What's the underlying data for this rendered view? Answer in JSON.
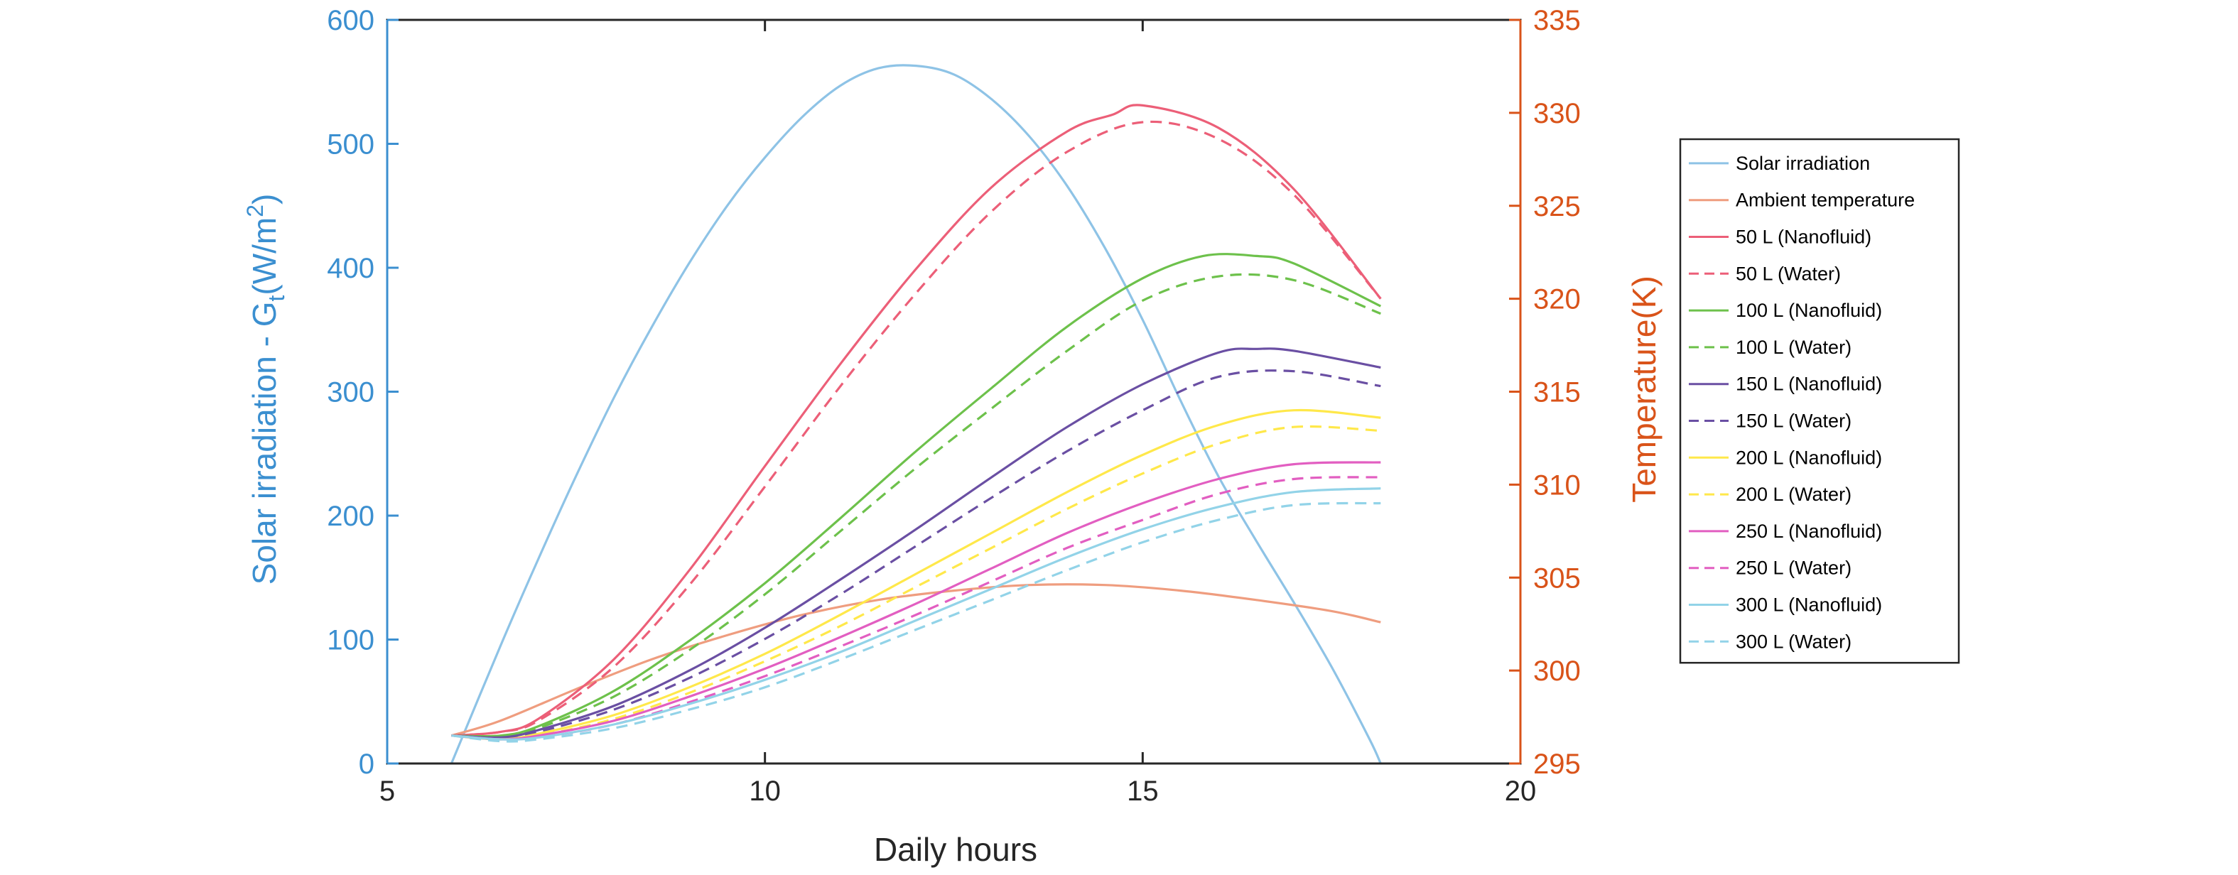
{
  "chart_data": {
    "type": "line",
    "xlabel": "Daily hours",
    "ylabel_left": "Solar irradiation - G",
    "ylabel_left_sub": "t",
    "ylabel_left_unit_open": "(W/m",
    "ylabel_left_unit_sup": "2",
    "ylabel_left_unit_close": ")",
    "ylabel_right": "Temperature(K)",
    "xlim": [
      5,
      20
    ],
    "ylim_left": [
      0,
      600
    ],
    "ylim_right": [
      295,
      335
    ],
    "xticks": [
      "5",
      "10",
      "15",
      "20"
    ],
    "yticks_left": [
      "0",
      "100",
      "200",
      "300",
      "400",
      "500",
      "600"
    ],
    "yticks_right": [
      "295",
      "300",
      "305",
      "310",
      "315",
      "320",
      "325",
      "330",
      "335"
    ],
    "grid": false,
    "legend_placement": "outside-right",
    "colors": {
      "left_axis": "#3b8fd0",
      "right_axis": "#d95319",
      "axis_box": "#262626"
    },
    "series": [
      {
        "name": "Solar irradiation",
        "axis": "left",
        "style": "solid",
        "color": "#8ec3e6",
        "x": [
          5.85,
          6.5,
          7,
          7.5,
          8,
          8.5,
          9,
          9.5,
          10,
          10.5,
          11,
          11.5,
          12,
          12.5,
          13,
          13.5,
          14,
          14.5,
          15,
          15.5,
          16,
          16.5,
          17,
          17.5,
          18,
          18.15
        ],
        "y": [
          0,
          95,
          165,
          232,
          295,
          352,
          404,
          450,
          489,
          522,
          547,
          561,
          563,
          556,
          536,
          506,
          466,
          416,
          358,
          293,
          232,
          180,
          130,
          78,
          20,
          0
        ]
      },
      {
        "name": "Ambient temperature",
        "axis": "right",
        "style": "solid",
        "color": "#ef9d7f",
        "x": [
          5.85,
          6.5,
          7.5,
          8.5,
          9.5,
          10.5,
          11.5,
          12.5,
          13.5,
          14.5,
          15.5,
          16.5,
          17.5,
          18.15
        ],
        "y": [
          296.5,
          297.3,
          299.0,
          300.6,
          301.9,
          303.0,
          303.8,
          304.3,
          304.6,
          304.6,
          304.3,
          303.8,
          303.2,
          302.6
        ]
      },
      {
        "name": "50 L (Nanofluid)",
        "axis": "right",
        "style": "solid",
        "color": "#ec5f78",
        "x": [
          5.85,
          6.5,
          7,
          8,
          9,
          10,
          11,
          12,
          13,
          14,
          14.6,
          15,
          16,
          17,
          18.15
        ],
        "y": [
          296.5,
          296.7,
          297.4,
          300.6,
          305.4,
          311.0,
          316.5,
          321.6,
          326.0,
          329.0,
          329.9,
          330.4,
          329.2,
          325.9,
          320.0
        ]
      },
      {
        "name": "50 L (Water)",
        "axis": "right",
        "style": "dashed",
        "color": "#ec5f78",
        "x": [
          5.85,
          6.5,
          7,
          8,
          9,
          10,
          11,
          12,
          13,
          14,
          15,
          16,
          17,
          18.15
        ],
        "y": [
          296.5,
          296.7,
          297.3,
          300.2,
          304.6,
          309.9,
          315.3,
          320.3,
          324.7,
          327.9,
          329.5,
          328.6,
          325.6,
          320.0
        ]
      },
      {
        "name": "100 L (Nanofluid)",
        "axis": "right",
        "style": "solid",
        "color": "#6dc14b",
        "x": [
          5.85,
          6.5,
          7,
          8,
          9,
          10,
          11,
          12,
          13,
          14,
          15,
          15.8,
          16.5,
          17,
          18.15
        ],
        "y": [
          296.5,
          296.5,
          297.0,
          298.9,
          301.6,
          304.7,
          308.2,
          311.8,
          315.2,
          318.5,
          321.1,
          322.3,
          322.3,
          321.9,
          319.6
        ]
      },
      {
        "name": "100 L (Water)",
        "axis": "right",
        "style": "dashed",
        "color": "#6dc14b",
        "x": [
          5.85,
          6.5,
          7,
          8,
          9,
          10,
          11,
          12,
          13,
          14,
          15,
          16,
          17,
          18.15
        ],
        "y": [
          296.5,
          296.4,
          296.9,
          298.6,
          301.1,
          304.1,
          307.5,
          310.9,
          314.1,
          317.2,
          319.9,
          321.2,
          321.0,
          319.2
        ]
      },
      {
        "name": "150 L (Nanofluid)",
        "axis": "right",
        "style": "solid",
        "color": "#6a4fa3",
        "x": [
          5.85,
          6.5,
          7,
          8,
          9,
          10,
          11,
          12,
          13,
          14,
          15,
          16,
          16.5,
          17,
          18.15
        ],
        "y": [
          296.5,
          296.4,
          296.8,
          298.1,
          300.0,
          302.3,
          304.9,
          307.6,
          310.4,
          313.1,
          315.4,
          317.1,
          317.3,
          317.2,
          316.3
        ]
      },
      {
        "name": "150 L (Water)",
        "axis": "right",
        "style": "dashed",
        "color": "#6a4fa3",
        "x": [
          5.85,
          6.5,
          7,
          8,
          9,
          10,
          11,
          12,
          13,
          14,
          15,
          16,
          17,
          18.15
        ],
        "y": [
          296.5,
          296.4,
          296.7,
          297.9,
          299.6,
          301.7,
          304.1,
          306.7,
          309.3,
          311.8,
          314.0,
          315.8,
          316.1,
          315.3
        ]
      },
      {
        "name": "200 L (Nanofluid)",
        "axis": "right",
        "style": "solid",
        "color": "#ffe84a",
        "x": [
          5.85,
          6.5,
          7,
          8,
          9,
          10,
          11,
          12,
          13,
          14,
          15,
          16,
          17,
          18.15
        ],
        "y": [
          296.5,
          296.3,
          296.6,
          297.6,
          299.1,
          300.9,
          303.0,
          305.2,
          307.4,
          309.6,
          311.6,
          313.2,
          314.0,
          313.6
        ]
      },
      {
        "name": "200 L (Water)",
        "axis": "right",
        "style": "dashed",
        "color": "#ffe84a",
        "x": [
          5.85,
          6.5,
          7,
          8,
          9,
          10,
          11,
          12,
          13,
          14,
          15,
          16,
          17,
          18.15
        ],
        "y": [
          296.5,
          296.3,
          296.5,
          297.4,
          298.8,
          300.5,
          302.4,
          304.5,
          306.6,
          308.7,
          310.6,
          312.2,
          313.1,
          312.9
        ]
      },
      {
        "name": "250 L (Nanofluid)",
        "axis": "right",
        "style": "solid",
        "color": "#e25ec1",
        "x": [
          5.85,
          6.5,
          7,
          8,
          9,
          10,
          11,
          12,
          13,
          14,
          15,
          16,
          17,
          18.15
        ],
        "y": [
          296.5,
          296.3,
          296.5,
          297.3,
          298.6,
          300.1,
          301.8,
          303.6,
          305.5,
          307.4,
          309.0,
          310.3,
          311.1,
          311.2
        ]
      },
      {
        "name": "250 L (Water)",
        "axis": "right",
        "style": "dashed",
        "color": "#e25ec1",
        "x": [
          5.85,
          6.5,
          7,
          8,
          9,
          10,
          11,
          12,
          13,
          14,
          15,
          16,
          17,
          18.15
        ],
        "y": [
          296.5,
          296.3,
          296.4,
          297.1,
          298.3,
          299.7,
          301.3,
          303.0,
          304.8,
          306.6,
          308.1,
          309.5,
          310.3,
          310.4
        ]
      },
      {
        "name": "300 L (Nanofluid)",
        "axis": "right",
        "style": "solid",
        "color": "#92d3e8",
        "x": [
          5.85,
          6.5,
          7,
          8,
          9,
          10,
          11,
          12,
          13,
          14,
          15,
          16,
          17,
          18.15
        ],
        "y": [
          296.5,
          296.3,
          296.4,
          297.1,
          298.2,
          299.5,
          301.0,
          302.7,
          304.4,
          306.1,
          307.6,
          308.8,
          309.6,
          309.8
        ]
      },
      {
        "name": "300 L (Water)",
        "axis": "right",
        "style": "dashed",
        "color": "#92d3e8",
        "x": [
          5.85,
          6.5,
          7,
          8,
          9,
          10,
          11,
          12,
          13,
          14,
          15,
          16,
          17,
          18.15
        ],
        "y": [
          296.5,
          296.2,
          296.3,
          296.9,
          297.9,
          299.1,
          300.6,
          302.2,
          303.8,
          305.4,
          306.9,
          308.1,
          308.9,
          309.0
        ]
      }
    ]
  }
}
